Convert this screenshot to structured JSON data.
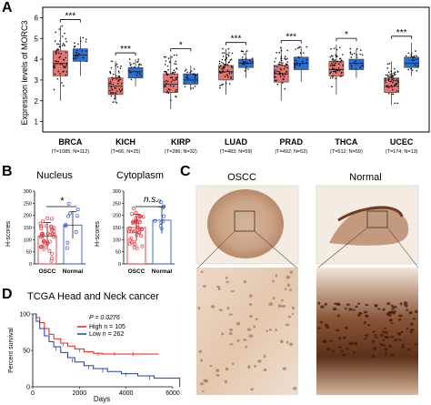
{
  "panels": {
    "a": "A",
    "b": "B",
    "c": "C",
    "d": "D"
  },
  "panel_a": {
    "ylabel": "Expression levels of MORC3",
    "yticks": [
      "1",
      "2",
      "3",
      "4",
      "5",
      "6"
    ],
    "groups": [
      {
        "name": "BRCA",
        "n": "(T=1085; N=112)",
        "sig": "***"
      },
      {
        "name": "KICH",
        "n": "(T=66; N=25)",
        "sig": "***"
      },
      {
        "name": "KIRP",
        "n": "(T=286; N=32)",
        "sig": "*"
      },
      {
        "name": "LUAD",
        "n": "(T=483; N=59)",
        "sig": "***"
      },
      {
        "name": "PRAD",
        "n": "(T=492; N=52)",
        "sig": "***"
      },
      {
        "name": "THCA",
        "n": "(T=512; N=59)",
        "sig": "*"
      },
      {
        "name": "UCEC",
        "n": "(T=174; N=13)",
        "sig": "***"
      }
    ],
    "colors": {
      "tumor": "#e8736f",
      "normal": "#2a6fd6"
    }
  },
  "panel_b": {
    "nucleus": {
      "title": "Nucleus",
      "sig": "*",
      "ylabel": "H-scores",
      "yticks": [
        "0",
        "50",
        "100",
        "150",
        "200",
        "250",
        "300"
      ],
      "categories": [
        "OSCC",
        "Normal"
      ]
    },
    "cytoplasm": {
      "title": "Cytoplasm",
      "sig": "n.s.",
      "ylabel": "H-scores",
      "yticks": [
        "0",
        "50",
        "100",
        "150",
        "200",
        "250",
        "300"
      ],
      "categories": [
        "OSCC",
        "Normal"
      ]
    }
  },
  "panel_c": {
    "left_title": "OSCC",
    "right_title": "Normal"
  },
  "panel_d": {
    "title": "TCGA Head and Neck cancer",
    "pvalue": "P = 0.0276",
    "legend_high": "High n = 105",
    "legend_low": "Low n = 262",
    "ylabel": "Percent survival",
    "xlabel": "Days",
    "yticks": [
      "0",
      "50",
      "100"
    ],
    "xticks": [
      "0",
      "2000",
      "4000",
      "6000"
    ]
  }
}
